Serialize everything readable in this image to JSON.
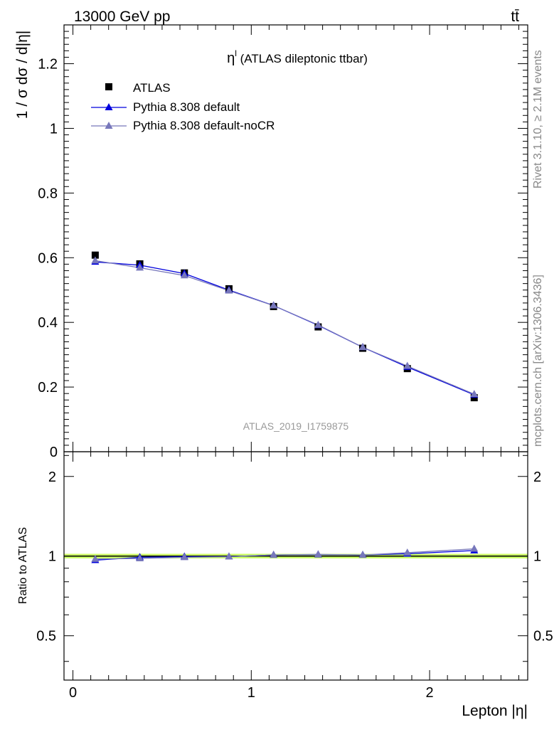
{
  "header": {
    "energy": "13000 GeV pp",
    "process": "tt̄"
  },
  "side_text": {
    "rivet": "Rivet 3.1.10, ≥ 2.1M events",
    "source": "mcplots.cern.ch [arXiv:1306.3436]"
  },
  "chart_data": [
    {
      "type": "scatter",
      "title": "η^l (ATLAS dileptonic ttbar)",
      "title_main": "η",
      "title_sup": "l",
      "title_rest": " (ATLAS dileptonic ttbar)",
      "watermark": "ATLAS_2019_I1759875",
      "ylabel": "1 / σ  dσ / d|η|",
      "xlabel": "",
      "xlim": [
        -0.05,
        2.55
      ],
      "ylim": [
        0,
        1.32
      ],
      "yticks": [
        0,
        0.2,
        0.4,
        0.6,
        0.8,
        1,
        1.2
      ],
      "ytick_labels": [
        "0",
        "0.2",
        "0.4",
        "0.6",
        "0.8",
        "1",
        "1.2"
      ],
      "x": [
        0.125,
        0.375,
        0.625,
        0.875,
        1.125,
        1.375,
        1.625,
        1.875,
        2.25
      ],
      "series": [
        {
          "name": "ATLAS",
          "marker": "square",
          "color": "#000000",
          "values": [
            0.608,
            0.581,
            0.553,
            0.504,
            0.449,
            0.386,
            0.32,
            0.257,
            0.167
          ]
        },
        {
          "name": "Pythia 8.308 default",
          "marker": "triangle",
          "color": "#0000dd",
          "values": [
            0.587,
            0.577,
            0.551,
            0.5,
            0.452,
            0.391,
            0.323,
            0.262,
            0.176
          ]
        },
        {
          "name": "Pythia 8.308 default-noCR",
          "marker": "triangle",
          "color": "#7777bb",
          "values": [
            0.591,
            0.569,
            0.545,
            0.498,
            0.452,
            0.392,
            0.323,
            0.265,
            0.178
          ]
        }
      ],
      "legend": "top-left"
    },
    {
      "type": "line",
      "title": "",
      "ylabel": "Ratio to ATLAS",
      "xlabel": "Lepton |η|",
      "xlim": [
        -0.05,
        2.55
      ],
      "ylim": [
        0.34,
        2.48
      ],
      "yticks": [
        0.5,
        1,
        2
      ],
      "ytick_labels": [
        "0.5",
        "1",
        "2"
      ],
      "xticks": [
        0,
        1,
        2
      ],
      "xtick_labels": [
        "0",
        "1",
        "2"
      ],
      "x": [
        0.125,
        0.375,
        0.625,
        0.875,
        1.125,
        1.375,
        1.625,
        1.875,
        2.25
      ],
      "band": {
        "low": 0.98,
        "high": 1.02,
        "color": "#ccff66"
      },
      "series": [
        {
          "name": "Pythia 8.308 default",
          "color": "#0000dd",
          "values": [
            0.965,
            0.99,
            0.995,
            0.995,
            1.01,
            1.013,
            1.01,
            1.02,
            1.05
          ]
        },
        {
          "name": "Pythia 8.308 default-noCR",
          "color": "#7777bb",
          "values": [
            0.975,
            0.98,
            0.99,
            0.995,
            1.01,
            1.015,
            1.01,
            1.03,
            1.065
          ]
        }
      ]
    }
  ]
}
